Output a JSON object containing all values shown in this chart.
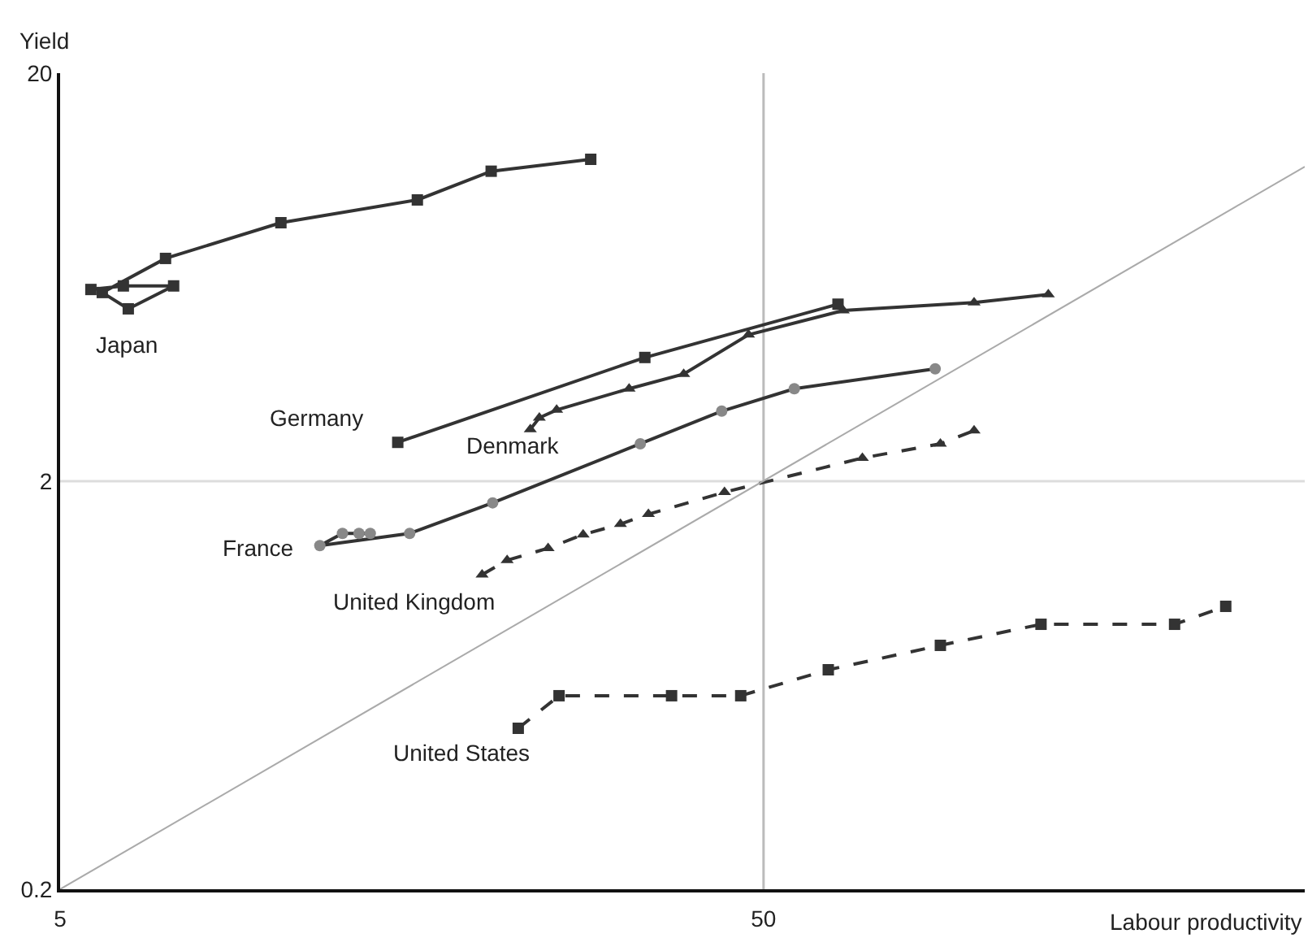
{
  "chart_data": {
    "type": "line",
    "xlabel": "Labour productivity",
    "ylabel": "Yield",
    "log": "xy",
    "xlim": [
      5,
      294
    ],
    "xticks": [
      5,
      50
    ],
    "ylim": [
      0.2,
      20
    ],
    "yticks": [
      0.2,
      2,
      20
    ],
    "grid": false,
    "legend": false,
    "ref_lines": [
      {
        "axis": "x",
        "value": 50,
        "color": "#bbbbbb"
      },
      {
        "axis": "y",
        "value": 2,
        "color": "#dddddd"
      }
    ],
    "series": [
      {
        "name": "Japan",
        "color": "#333333",
        "marker": "square",
        "line_style": "solid",
        "x": [
          5.53,
          6.15,
          7.25,
          6.25,
          5.74,
          7.06,
          10.3,
          16.1,
          20.5,
          28.4
        ],
        "values": [
          5.9,
          6.02,
          6.02,
          5.29,
          5.8,
          7.03,
          8.6,
          9.78,
          11.5,
          12.3
        ]
      },
      {
        "name": "Germany",
        "color": "#333333",
        "marker": "square",
        "line_style": "solid",
        "x": [
          15.1,
          33.9,
          63.8
        ],
        "values": [
          2.49,
          4.02,
          5.43
        ]
      },
      {
        "name": "Denmark",
        "color": "#333333",
        "marker": "triangle",
        "line_style": "solid",
        "x": [
          23.3,
          24.0,
          25.4,
          32.2,
          38.5,
          47.6,
          64.9,
          99.6,
          127
        ],
        "values": [
          2.68,
          2.86,
          2.99,
          3.37,
          3.66,
          4.57,
          5.24,
          5.48,
          5.74
        ]
      },
      {
        "name": "France",
        "color": "#888888",
        "marker": "circle",
        "line_style": "solid",
        "x": [
          13.8,
          13.3,
          12.6,
          11.7,
          15.7,
          20.6,
          33.4,
          43.6,
          55.3,
          87.7
        ],
        "values": [
          1.49,
          1.49,
          1.49,
          1.39,
          1.49,
          1.77,
          2.47,
          2.97,
          3.37,
          3.77
        ]
      },
      {
        "name": "United Kingdom",
        "color": "#333333",
        "marker": "triangle",
        "line_style": "dashed",
        "x": [
          19.9,
          21.6,
          24.7,
          27.7,
          31.3,
          34.3,
          44.0,
          69.1,
          89.2,
          99.6
        ],
        "values": [
          1.18,
          1.28,
          1.37,
          1.48,
          1.57,
          1.66,
          1.88,
          2.28,
          2.47,
          2.66
        ]
      },
      {
        "name": "United States",
        "color": "#333333",
        "marker": "square",
        "line_style": "dashed",
        "x": [
          22.4,
          25.6,
          37.0,
          46.4,
          61.8,
          89.2,
          124,
          192,
          227
        ],
        "values": [
          0.496,
          0.596,
          0.596,
          0.596,
          0.69,
          0.792,
          0.892,
          0.892,
          0.987
        ]
      },
      {
        "color": "#aaaaaa",
        "marker": "none",
        "line_style": "solid",
        "x": [
          5,
          294
        ],
        "values": [
          0.2,
          11.8
        ]
      }
    ]
  }
}
